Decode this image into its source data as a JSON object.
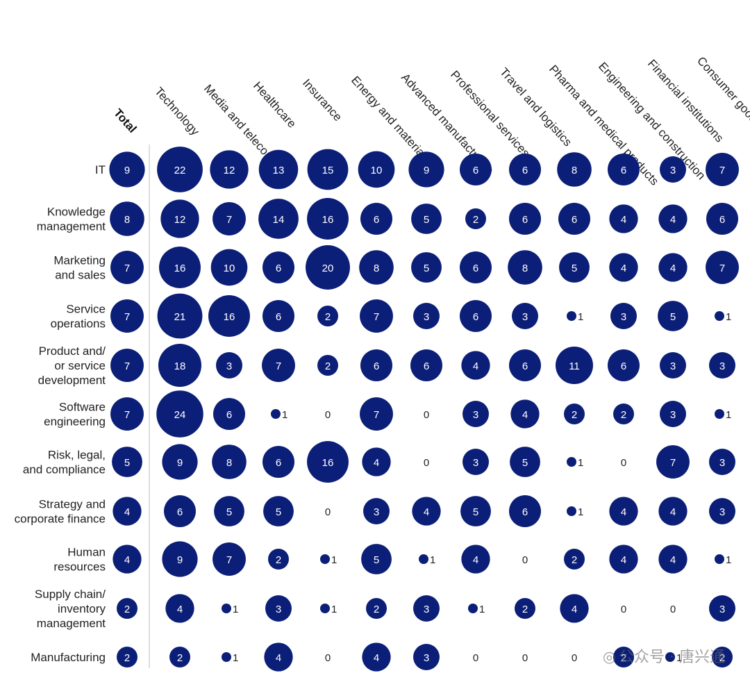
{
  "chart_data": {
    "type": "bubble-matrix",
    "title": "",
    "colors": {
      "bubble": "#0c1f78",
      "divider": "#bbbbbb",
      "text": "#222222"
    },
    "columns": [
      "Total",
      "Technology",
      "Media and telecom",
      "Healthcare",
      "Insurance",
      "Energy and materials",
      "Advanced manufacturing",
      "Professional services",
      "Travel and logistics",
      "Pharma and medical products",
      "Engineering and construction",
      "Financial institutions",
      "Consumer goods and retail"
    ],
    "rows": [
      {
        "label": [
          "IT"
        ],
        "values": [
          9,
          22,
          12,
          13,
          15,
          10,
          9,
          6,
          6,
          8,
          6,
          3,
          7
        ]
      },
      {
        "label": [
          "Knowledge",
          "management"
        ],
        "values": [
          8,
          12,
          7,
          14,
          16,
          6,
          5,
          2,
          6,
          6,
          4,
          4,
          6
        ]
      },
      {
        "label": [
          "Marketing",
          "and sales"
        ],
        "values": [
          7,
          16,
          10,
          6,
          20,
          8,
          5,
          6,
          8,
          5,
          4,
          4,
          7
        ]
      },
      {
        "label": [
          "Service",
          "operations"
        ],
        "values": [
          7,
          21,
          16,
          6,
          2,
          7,
          3,
          6,
          3,
          1,
          3,
          5,
          1
        ]
      },
      {
        "label": [
          "Product and/",
          "or service",
          "development"
        ],
        "values": [
          7,
          18,
          3,
          7,
          2,
          6,
          6,
          4,
          6,
          11,
          6,
          3,
          3
        ]
      },
      {
        "label": [
          "Software",
          "engineering"
        ],
        "values": [
          7,
          24,
          6,
          1,
          0,
          7,
          0,
          3,
          4,
          2,
          2,
          3,
          1
        ]
      },
      {
        "label": [
          "Risk, legal,",
          "and compliance"
        ],
        "values": [
          5,
          9,
          8,
          6,
          16,
          4,
          0,
          3,
          5,
          1,
          0,
          7,
          3
        ]
      },
      {
        "label": [
          "Strategy and",
          "corporate finance"
        ],
        "values": [
          4,
          6,
          5,
          5,
          0,
          3,
          4,
          5,
          6,
          1,
          4,
          4,
          3
        ]
      },
      {
        "label": [
          "Human",
          "resources"
        ],
        "values": [
          4,
          9,
          7,
          2,
          1,
          5,
          1,
          4,
          0,
          2,
          4,
          4,
          1
        ]
      },
      {
        "label": [
          "Supply chain/",
          "inventory",
          "management"
        ],
        "values": [
          2,
          4,
          1,
          3,
          1,
          2,
          3,
          1,
          2,
          4,
          0,
          0,
          3
        ]
      },
      {
        "label": [
          "Manufacturing"
        ],
        "values": [
          2,
          2,
          1,
          4,
          0,
          4,
          3,
          0,
          0,
          0,
          2,
          1,
          2
        ]
      }
    ]
  },
  "watermark": {
    "text": "公众号 · 唐兴通",
    "icon": "wechat-icon"
  }
}
